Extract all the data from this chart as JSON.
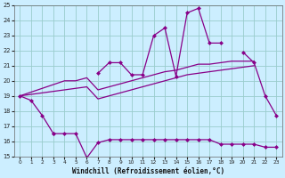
{
  "x": [
    0,
    1,
    2,
    3,
    4,
    5,
    6,
    7,
    8,
    9,
    10,
    11,
    12,
    13,
    14,
    15,
    16,
    17,
    18,
    19,
    20,
    21,
    22,
    23
  ],
  "line_zigzag_upper": [
    19.0,
    18.7,
    17.7,
    16.5,
    null,
    null,
    null,
    20.5,
    21.2,
    21.2,
    20.4,
    20.4,
    23.0,
    23.5,
    20.3,
    24.5,
    24.8,
    22.5,
    22.5,
    null,
    21.9,
    21.2,
    19.0,
    17.7
  ],
  "line_zigzag_lower": [
    null,
    null,
    null,
    16.5,
    16.5,
    16.5,
    14.9,
    15.9,
    16.1,
    16.1,
    16.1,
    16.1,
    16.1,
    16.1,
    16.1,
    16.1,
    16.1,
    16.1,
    15.8,
    15.8,
    15.8,
    15.8,
    15.6,
    15.6
  ],
  "line_trend_upper": [
    19.0,
    19.25,
    19.5,
    19.75,
    20.0,
    20.0,
    20.2,
    19.4,
    19.6,
    19.8,
    20.0,
    20.2,
    20.4,
    20.6,
    20.7,
    20.9,
    21.1,
    21.1,
    21.2,
    21.3,
    21.3,
    21.3,
    null,
    null
  ],
  "line_trend_lower": [
    19.0,
    19.1,
    19.2,
    19.3,
    19.4,
    19.5,
    19.6,
    18.8,
    19.0,
    19.2,
    19.4,
    19.6,
    19.8,
    20.0,
    20.2,
    20.4,
    20.5,
    20.6,
    20.7,
    20.8,
    20.9,
    21.0,
    null,
    null
  ],
  "bg_color": "#cceeff",
  "grid_color": "#99cccc",
  "line_color": "#880088",
  "xlabel": "Windchill (Refroidissement éolien,°C)",
  "ylim": [
    15,
    25
  ],
  "xlim": [
    0,
    23
  ],
  "yticks": [
    15,
    16,
    17,
    18,
    19,
    20,
    21,
    22,
    23,
    24,
    25
  ],
  "xticks": [
    0,
    1,
    2,
    3,
    4,
    5,
    6,
    7,
    8,
    9,
    10,
    11,
    12,
    13,
    14,
    15,
    16,
    17,
    18,
    19,
    20,
    21,
    22,
    23
  ],
  "marker_size": 2.5,
  "line_width": 0.9
}
